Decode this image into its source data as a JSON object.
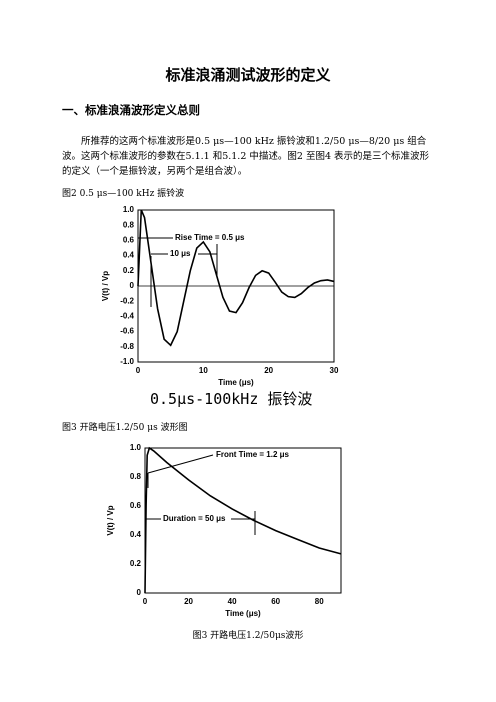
{
  "header": {
    "title": "标准浪涌测试波形的定义"
  },
  "section": {
    "heading": "一、标准浪涌波形定义总则",
    "paragraph": "所推荐的这两个标准波形是0.5 μs—100 kHz 振铃波和1.2/50 μs—8/20 μs 组合波。这两个标准波形的参数在5.1.1 和5.1.2 中描述。图2 至图4 表示的是三个标准波形的定义（一个是振铃波，另两个是组合波）。"
  },
  "figures": [
    {
      "caption": "图2 0.5 μs—100 kHz 振铃波",
      "subtitle": "0.5μs-100kHz 振铃波"
    },
    {
      "caption": "图3 开路电压1.2/50 μs 波形图",
      "note": "图3 开路电压1.2/50μs波形"
    }
  ],
  "chart_data": [
    {
      "type": "line",
      "xlabel": "Time (μs)",
      "ylabel": "V(t) / Vp",
      "annotations": [
        "Rise Time = 0.5 μs",
        "10 μs"
      ],
      "x": [
        0,
        0.5,
        1,
        1.5,
        2,
        3,
        4,
        5,
        6,
        7,
        8,
        9,
        10,
        11,
        12,
        13,
        14,
        15,
        16,
        17,
        18,
        19,
        20,
        21,
        22,
        23,
        24,
        25,
        26,
        27,
        28,
        29,
        30
      ],
      "series": [
        {
          "color": "#000000",
          "values": [
            0,
            1.0,
            0.9,
            0.6,
            0.3,
            -0.3,
            -0.7,
            -0.78,
            -0.6,
            -0.2,
            0.2,
            0.5,
            0.58,
            0.45,
            0.15,
            -0.15,
            -0.33,
            -0.35,
            -0.22,
            -0.02,
            0.14,
            0.2,
            0.17,
            0.05,
            -0.08,
            -0.14,
            -0.15,
            -0.1,
            -0.02,
            0.04,
            0.07,
            0.08,
            0.06
          ]
        }
      ],
      "xlim": [
        0,
        30
      ],
      "xticks": [
        0,
        10,
        20,
        30
      ],
      "ylim": [
        -1,
        1
      ],
      "yticks": [
        {
          "value": 1,
          "label": "1.0"
        },
        0.8,
        0.6,
        0.4,
        0.2,
        0,
        -0.2,
        -0.4,
        -0.6,
        -0.8,
        {
          "value": -1,
          "label": "-1.0"
        }
      ],
      "zero_line": true
    },
    {
      "type": "line",
      "xlabel": "Time (μs)",
      "ylabel": "V(t) / Vp",
      "annotations": [
        "Front Time = 1.2 μs",
        "Duration = 50 μs"
      ],
      "x": [
        0,
        0.5,
        1,
        2,
        4,
        10,
        20,
        30,
        40,
        50,
        60,
        70,
        80,
        90
      ],
      "series": [
        {
          "color": "#000000",
          "values": [
            0,
            0.6,
            0.95,
            1.0,
            0.98,
            0.9,
            0.78,
            0.67,
            0.58,
            0.5,
            0.43,
            0.37,
            0.31,
            0.27
          ]
        }
      ],
      "xlim": [
        0,
        90
      ],
      "xticks": [
        0,
        20,
        40,
        60,
        80
      ],
      "ylim": [
        0,
        1
      ],
      "yticks": [
        0,
        0.2,
        0.4,
        0.6,
        0.8,
        {
          "value": 1,
          "label": "1.0"
        }
      ],
      "zero_line": false
    }
  ]
}
